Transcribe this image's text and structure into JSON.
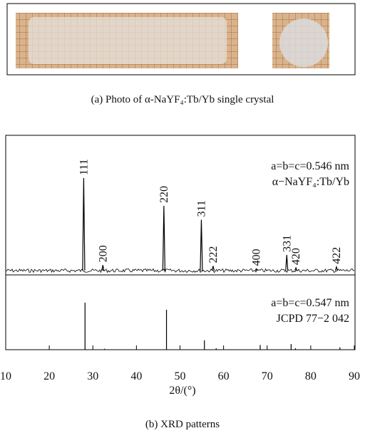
{
  "caption_a": "(a) Photo of α-NaYF₄:Tb/Yb single crystal",
  "caption_b": "(b) XRD patterns",
  "chart_data": {
    "type": "xrd",
    "xlabel": "2θ/(°)",
    "xlim": [
      10,
      90
    ],
    "xticks": [
      10,
      20,
      30,
      40,
      50,
      60,
      70,
      80,
      90
    ],
    "ylim": [
      0,
      100
    ],
    "panels": [
      {
        "annotations": [
          "a=b=c=0.546 nm",
          "α−NaYF₄:Tb/Yb"
        ],
        "x": [
          27.9,
          32.3,
          46.3,
          54.9,
          57.6,
          67.5,
          74.5,
          76.6,
          85.9
        ],
        "values": [
          100,
          6,
          70,
          55,
          5,
          2,
          17,
          3,
          4
        ],
        "labels": [
          "111",
          "200",
          "220",
          "311",
          "222",
          "400",
          "331",
          "420",
          "422"
        ]
      },
      {
        "annotations": [
          "a=b=c=0.547 nm",
          "JCPD 77−2 042"
        ],
        "x": [
          28.2,
          32.7,
          46.9,
          55.6,
          58.3,
          68.4,
          75.5,
          76.5,
          86.7
        ],
        "values": [
          100,
          2,
          85,
          20,
          3,
          10,
          12,
          3,
          5
        ]
      }
    ]
  }
}
